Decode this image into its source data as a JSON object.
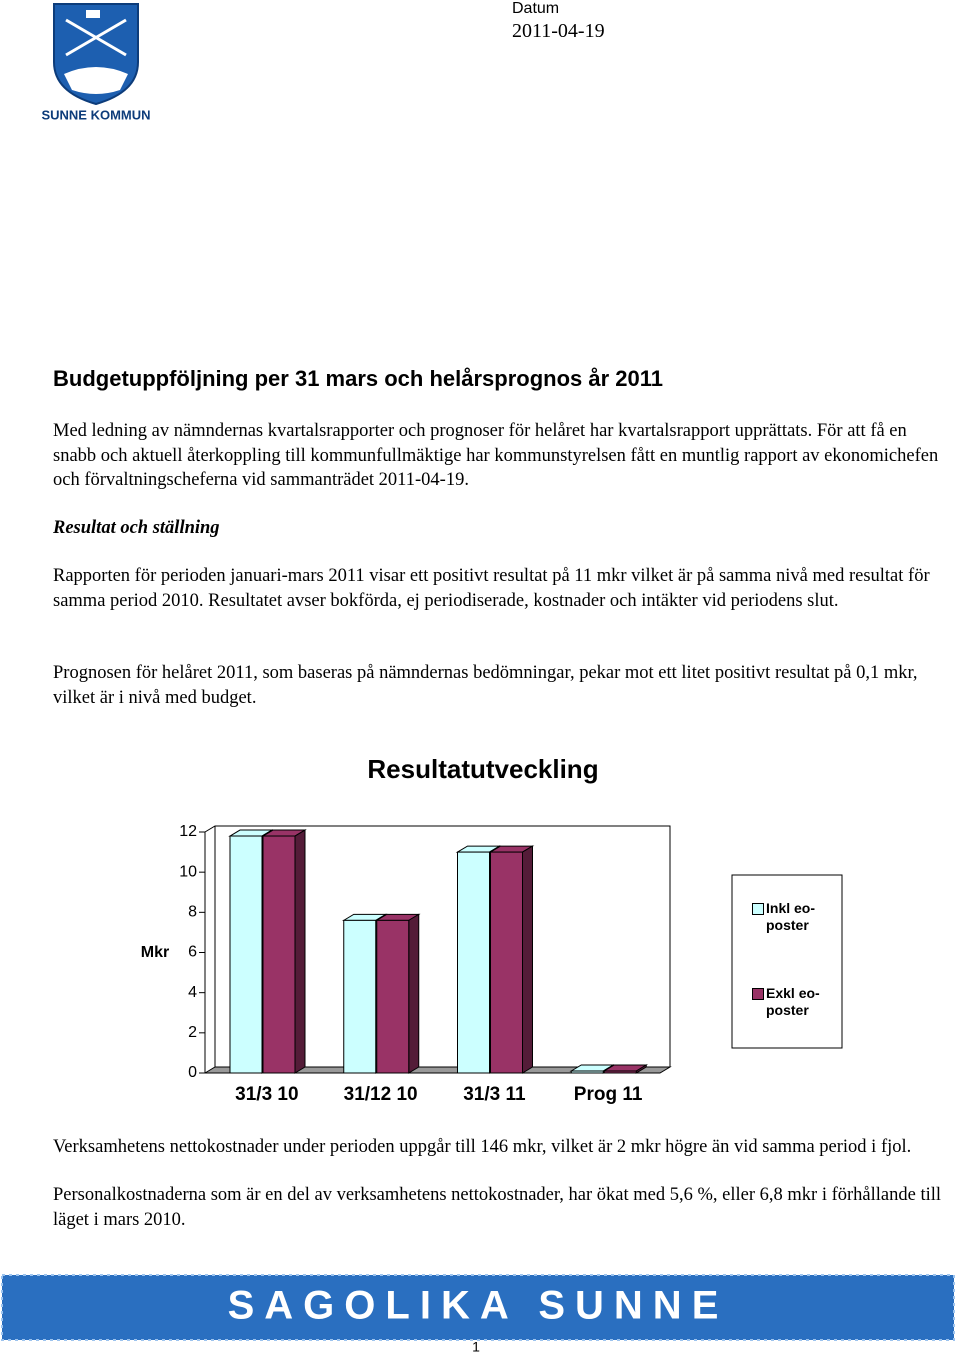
{
  "header": {
    "logo_text": "SUNNE KOMMUN",
    "date_label": "Datum",
    "date": "2011-04-19"
  },
  "title": "Budgetuppföljning per 31 mars och helårsprognos år 2011",
  "intro": "Med ledning av nämndernas kvartalsrapporter och prognoser för helåret har kvartalsrapport upprättats. För att få en snabb och aktuell återkoppling till kommunfullmäktige har kommunstyrelsen fått en muntlig rapport av ekonomichefen och förvaltningscheferna vid sammanträdet 2011-04-19.",
  "section_heading": "Resultat och ställning",
  "paragraphs": [
    "Rapporten för perioden januari-mars 2011 visar ett positivt resultat på 11 mkr vilket är på samma nivå med resultat för samma period 2010. Resultatet avser bokförda, ej periodiserade, kostnader och intäkter vid periodens slut.",
    "Prognosen för helåret 2011, som baseras på nämndernas bedömningar, pekar mot ett litet positivt resultat på 0,1 mkr, vilket är i nivå med budget."
  ],
  "chart_data": {
    "type": "bar",
    "title": "Resultatutveckling",
    "y_label": "Mkr",
    "categories": [
      "31/3 10",
      "31/12 10",
      "31/3 11",
      "Prog 11"
    ],
    "series": [
      {
        "name": "Inkl eo-poster",
        "color": "#ccffff",
        "values": [
          11.8,
          7.6,
          11,
          0.1
        ]
      },
      {
        "name": "Exkl eo-poster",
        "color": "#993366",
        "values": [
          11.8,
          7.6,
          11,
          0.1
        ]
      }
    ],
    "ylim": [
      0,
      12
    ],
    "yticks": [
      0,
      2,
      4,
      6,
      8,
      10,
      12
    ],
    "grid": false,
    "legend": "right"
  },
  "after_paragraphs": [
    "Verksamhetens nettokostnader under perioden uppgår till 146 mkr, vilket är 2 mkr högre än vid samma period i fjol.",
    "Personalkostnaderna som är en del av verksamhetens nettokostnader, har ökat med 5,6 %, eller 6,8 mkr i förhållande till läget i mars 2010."
  ],
  "footer": {
    "banner": "SAGOLIKA SUNNE",
    "page_number": "1"
  }
}
